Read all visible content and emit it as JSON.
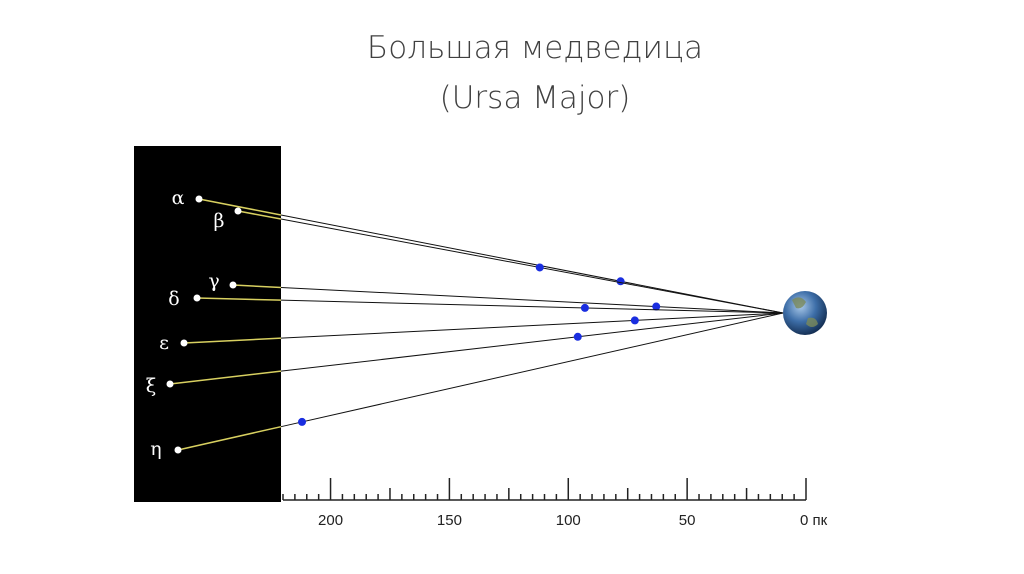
{
  "header": {
    "title": "Большая медведица",
    "subtitle": "(Ursa Major)"
  },
  "axis": {
    "lim": [
      220,
      0
    ],
    "ticks": [
      200,
      150,
      100,
      50,
      {
        "value": 0,
        "label": "0 пк"
      }
    ]
  },
  "stars": [
    {
      "label": "α",
      "distance": 78
    },
    {
      "label": "β",
      "distance": 112
    },
    {
      "label": "γ",
      "distance": 63
    },
    {
      "label": "δ",
      "distance": 93
    },
    {
      "label": "ε",
      "distance": 72
    },
    {
      "label": "ξ",
      "distance": 96
    },
    {
      "label": "η",
      "distance": 212
    }
  ]
}
